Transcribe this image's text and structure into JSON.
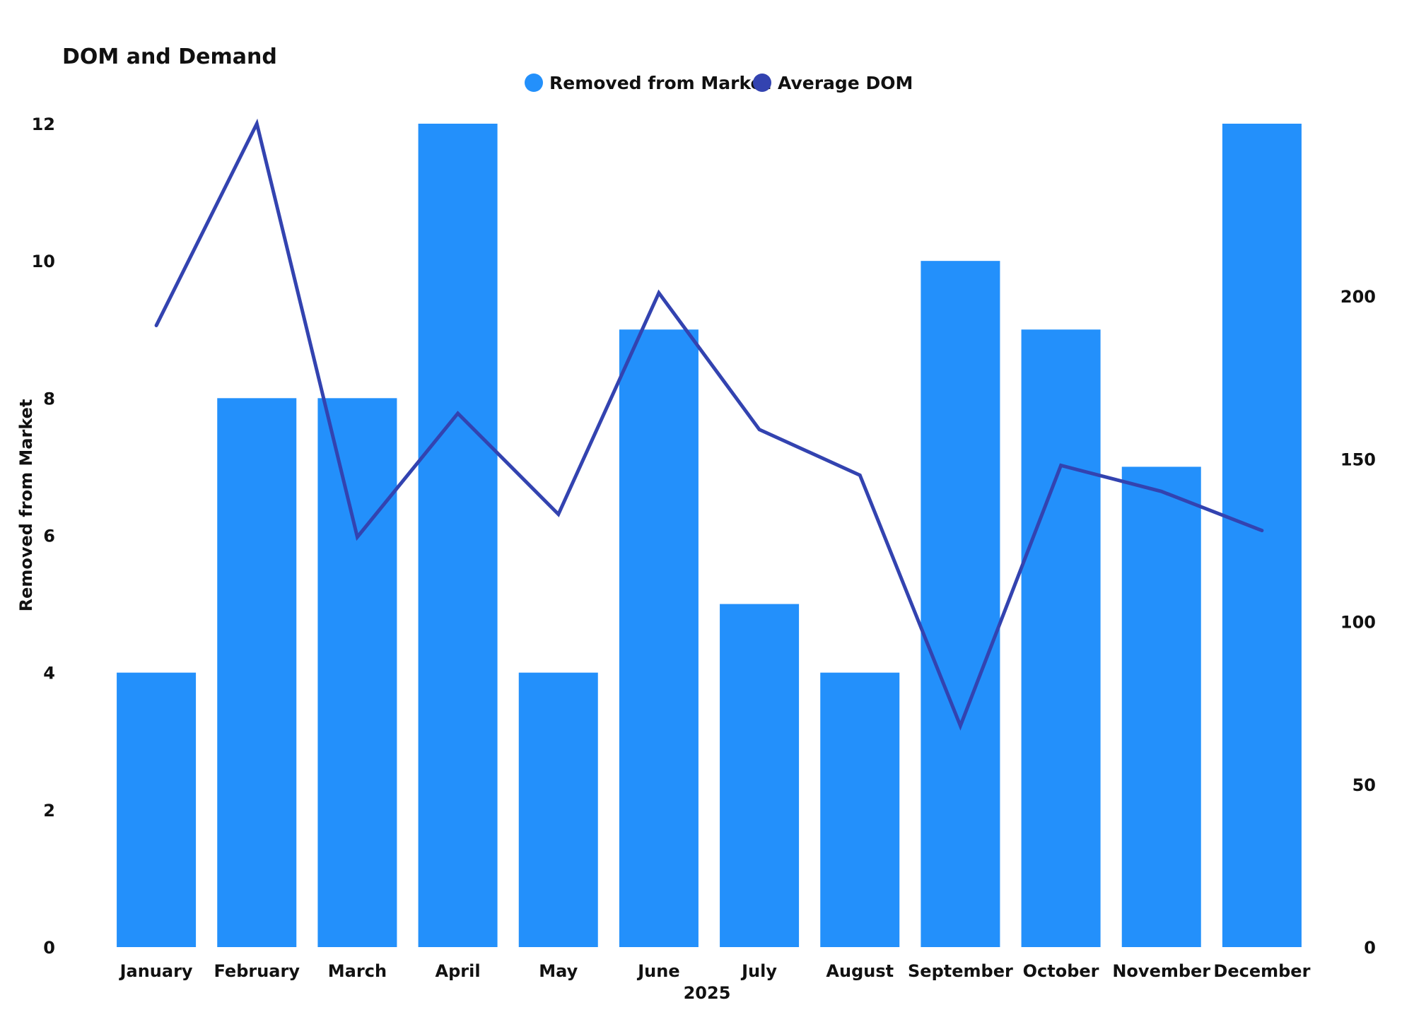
{
  "chart_data": {
    "type": "bar",
    "title": "DOM and Demand",
    "xlabel": "2025",
    "ylabel": "Removed from Market",
    "y2label": "",
    "categories": [
      "January",
      "February",
      "March",
      "April",
      "May",
      "June",
      "July",
      "August",
      "September",
      "October",
      "November",
      "December"
    ],
    "series": [
      {
        "name": "Removed from Market",
        "type": "bar",
        "axis": "left",
        "color": "#2390FB",
        "values": [
          4,
          8,
          8,
          12,
          4,
          9,
          5,
          4,
          10,
          9,
          7,
          12
        ]
      },
      {
        "name": "Average DOM",
        "type": "line",
        "axis": "right",
        "color": "#3343B0",
        "values": [
          191,
          253,
          126,
          164,
          133,
          201,
          159,
          145,
          68,
          148,
          140,
          128
        ]
      }
    ],
    "ylim": [
      0,
      12
    ],
    "yticks": [
      0,
      2,
      4,
      6,
      8,
      10,
      12
    ],
    "y2lim": [
      0,
      253
    ],
    "y2ticks": [
      0,
      50,
      100,
      150,
      200
    ],
    "legend_position": "top-center",
    "grid": false
  }
}
